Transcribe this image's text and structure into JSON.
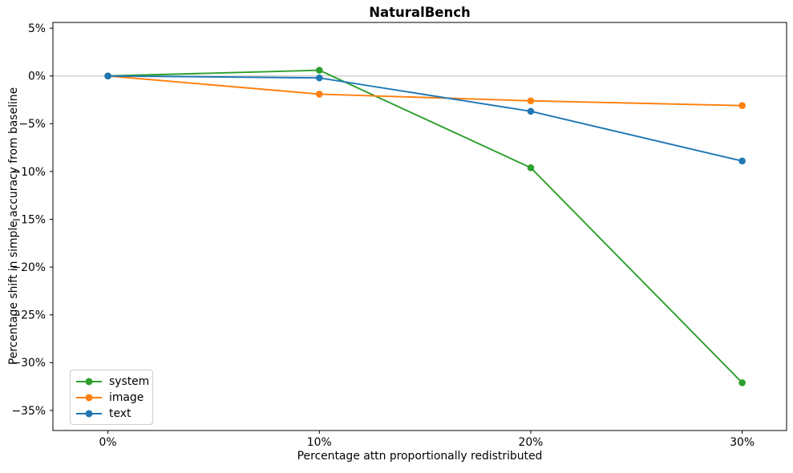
{
  "chart_data": {
    "type": "line",
    "title": "NaturalBench",
    "xlabel": "Percentage attn proportionally redistributed",
    "ylabel": "Percentage shift in simple accuracy from baseline",
    "x": [
      0,
      10,
      20,
      30
    ],
    "xtick_labels": [
      "0%",
      "10%",
      "20%",
      "30%"
    ],
    "ytick_values": [
      5,
      0,
      -5,
      -10,
      -15,
      -20,
      -25,
      -30,
      -35
    ],
    "ytick_labels": [
      "5%",
      "0%",
      "−5%",
      "−10%",
      "−15%",
      "−20%",
      "−25%",
      "−30%",
      "−35%"
    ],
    "xlim": [
      -2.6,
      32.1
    ],
    "ylim": [
      -37.1,
      5.6
    ],
    "grid": false,
    "zero_line": true,
    "zero_line_color": "#c8c8c8",
    "axis_color": "#000000",
    "legend_position": "lower left",
    "series": [
      {
        "name": "system",
        "color": "#2ca02c",
        "values": [
          0,
          0.6,
          -9.6,
          -32.1
        ]
      },
      {
        "name": "image",
        "color": "#ff7f0e",
        "values": [
          0,
          -1.9,
          -2.6,
          -3.1
        ]
      },
      {
        "name": "text",
        "color": "#1f77b4",
        "values": [
          0,
          -0.2,
          -3.7,
          -8.9
        ]
      }
    ]
  }
}
